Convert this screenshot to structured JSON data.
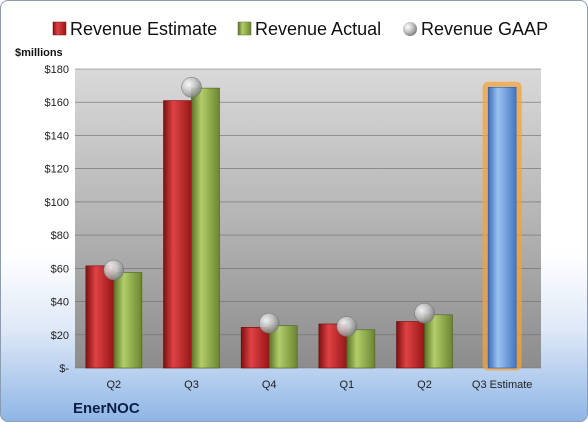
{
  "chart_data": {
    "type": "bar",
    "categories": [
      "Q2",
      "Q3",
      "Q4",
      "Q1",
      "Q2",
      "Q3 Estimate"
    ],
    "series": [
      {
        "name": "Revenue Estimate",
        "type": "bar",
        "color": "#c0282a",
        "values": [
          61.5,
          161,
          24.5,
          26.5,
          28,
          null
        ]
      },
      {
        "name": "Revenue Actual",
        "type": "bar",
        "color": "#8ea94a",
        "values": [
          57.5,
          168.5,
          25.5,
          23,
          32,
          null
        ]
      },
      {
        "name": "Revenue GAAP",
        "type": "marker",
        "color": "#b3b3b3",
        "values": [
          59,
          169,
          27,
          25,
          33,
          null
        ]
      },
      {
        "name": "",
        "type": "bar",
        "color": "#5b8fd8",
        "values": [
          null,
          null,
          null,
          null,
          null,
          169
        ],
        "highlight_color": "#f5a23a"
      }
    ],
    "ylim": [
      0,
      180
    ],
    "yticks": [
      0,
      20,
      40,
      60,
      80,
      100,
      120,
      140,
      160,
      180
    ],
    "ytick_labels": [
      "$-",
      "$20",
      "$40",
      "$60",
      "$80",
      "$100",
      "$120",
      "$140",
      "$160",
      "$180"
    ],
    "ylabel": "$millions",
    "company": "EnerNOC",
    "legend_position": "top",
    "grid": true
  }
}
